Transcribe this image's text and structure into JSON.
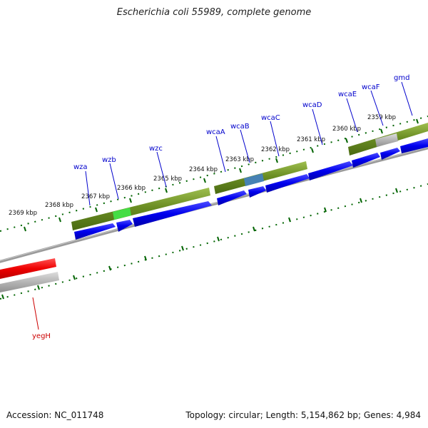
{
  "title": "Escherichia coli 55989, complete genome",
  "footer": {
    "accession": "Accession: NC_011748",
    "topology": "Topology: circular; Length: 5,154,862 bp; Genes: 4,984"
  },
  "ticks": [
    "2369 kbp",
    "2368 kbp",
    "2367 kbp",
    "2366 kbp",
    "2365 kbp",
    "2364 kbp",
    "2363 kbp",
    "2362 kbp",
    "2361 kbp",
    "2360 kbp",
    "2359 kbp"
  ],
  "genes": [
    "wza",
    "wzb",
    "wzc",
    "wcaA",
    "wcaB",
    "wcaC",
    "wcaD",
    "wcaE",
    "wcaF",
    "gmd",
    "yegH"
  ],
  "colors": {
    "backbone": "#808080",
    "forward_gene": "#0000ee",
    "reverse_gene": "#ee0000",
    "forward_cds_region": "#6b8e23",
    "highlight_green": "#44dd44",
    "highlight_blue": "#4682b4",
    "neutral_gray": "#b4b4b4",
    "tick": "#006400",
    "gene_label_forward": "#0000cc",
    "gene_label_reverse": "#cc0000"
  }
}
